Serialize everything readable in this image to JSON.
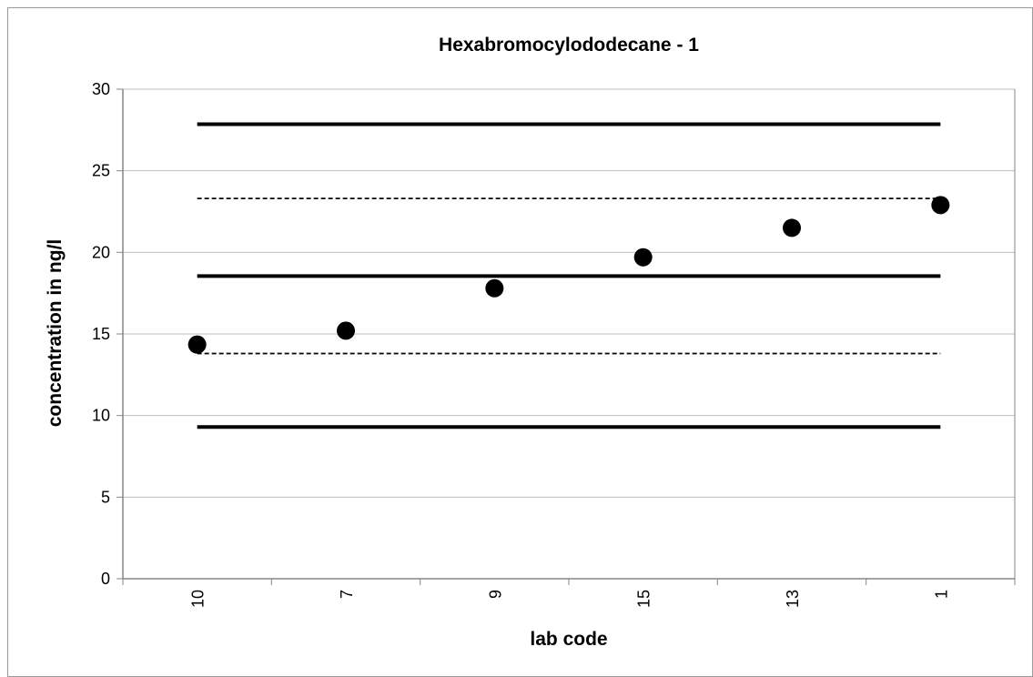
{
  "chart_data": {
    "type": "scatter",
    "title": "Hexabromocylododecane - 1",
    "xlabel": "lab code",
    "ylabel": "concentration in ng/l",
    "ylim": [
      0,
      30
    ],
    "yticks": [
      0,
      5,
      10,
      15,
      20,
      25,
      30
    ],
    "categories": [
      "10",
      "7",
      "9",
      "15",
      "13",
      "1"
    ],
    "values": [
      14.35,
      15.2,
      17.8,
      19.7,
      21.5,
      22.9
    ],
    "reference_lines": [
      {
        "style": "solid",
        "value": 27.85
      },
      {
        "style": "dashed",
        "value": 23.3
      },
      {
        "style": "solid",
        "value": 18.55
      },
      {
        "style": "dashed",
        "value": 13.8
      },
      {
        "style": "solid",
        "value": 9.3
      }
    ],
    "grid": true,
    "legend": "none",
    "colors": {
      "marker": "#000000",
      "lines": "#000000",
      "grid": "#bfbfbf",
      "axis": "#868686"
    }
  }
}
